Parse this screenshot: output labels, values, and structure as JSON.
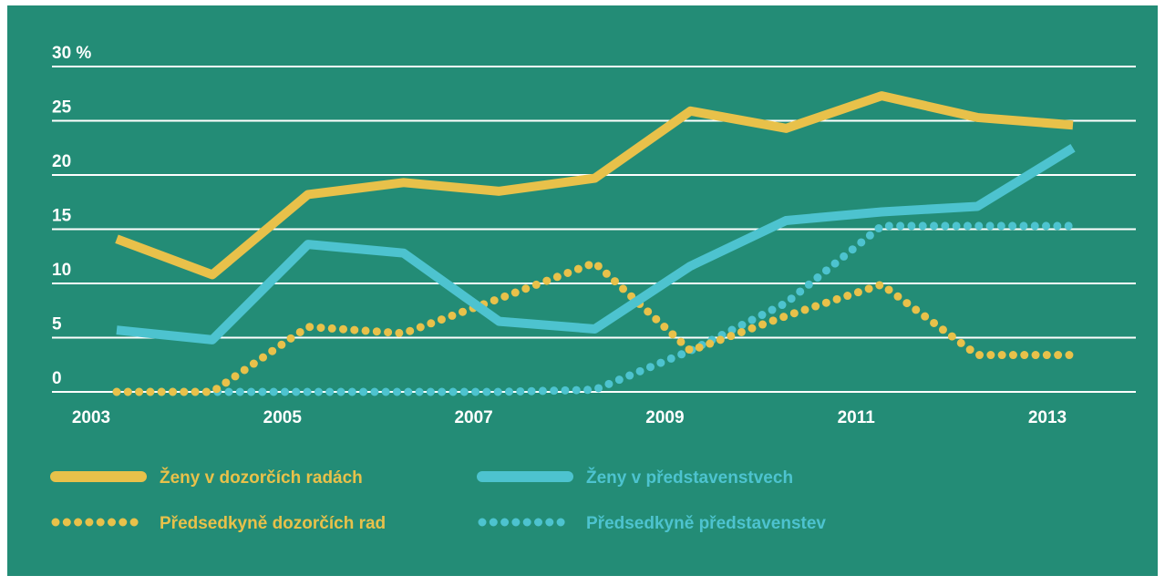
{
  "chart_data": {
    "type": "line",
    "categories": [
      "2003",
      null,
      "2005",
      null,
      "2007",
      null,
      "2009",
      null,
      "2011",
      null,
      "2013"
    ],
    "series": [
      {
        "name": "Ženy v dozorčích radách",
        "color": "#e8c14a",
        "style": "solid",
        "values": [
          14.1,
          10.8,
          18.2,
          19.3,
          18.5,
          19.7,
          25.9,
          24.3,
          27.3,
          25.3,
          24.6
        ]
      },
      {
        "name": "Ženy v představenstvech",
        "color": "#4dc3cf",
        "style": "solid",
        "values": [
          5.7,
          4.8,
          13.6,
          12.8,
          6.5,
          5.8,
          11.6,
          15.8,
          16.6,
          17.1,
          22.5
        ]
      },
      {
        "name": "Předsedkyně dozorčích rad",
        "color": "#e8c14a",
        "style": "dotted",
        "values": [
          0,
          0,
          6,
          5.4,
          8.6,
          11.9,
          3.8,
          7,
          9.9,
          3.4,
          3.4
        ]
      },
      {
        "name": "Předsedkyně představenstev",
        "color": "#4dc3cf",
        "style": "dotted",
        "values": [
          0,
          0,
          0,
          0,
          0,
          0.2,
          3.8,
          8.2,
          15.3,
          15.3,
          15.3
        ]
      }
    ],
    "ylim": [
      0,
      30
    ],
    "yticks": [
      0,
      5,
      10,
      15,
      20,
      25,
      {
        "value": 30,
        "label": "30 %"
      }
    ],
    "grid": true,
    "legend": "bottom"
  }
}
